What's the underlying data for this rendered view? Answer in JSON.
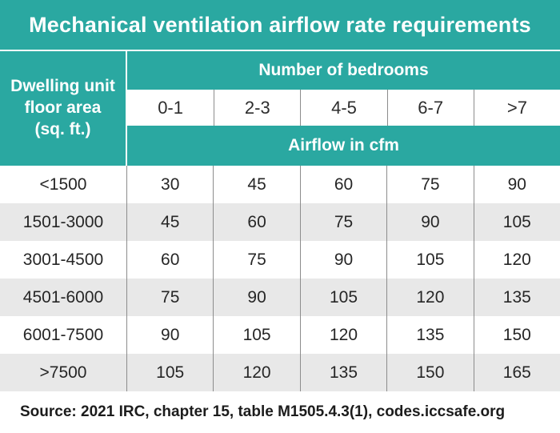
{
  "colors": {
    "accent_teal": "#2aa8a1",
    "alt_row_gray": "#e8e8e8",
    "separator_gray": "#8c8c8c",
    "text_dark": "#262626",
    "header_text": "#ffffff"
  },
  "chart_data": {
    "type": "table",
    "title": "Mechanical ventilation airflow rate requirements",
    "row_header_lines": [
      "Dwelling unit",
      "floor area",
      "(sq. ft.)"
    ],
    "column_group_label": "Number of bedrooms",
    "value_unit_label": "Airflow in cfm",
    "columns": [
      "0-1",
      "2-3",
      "4-5",
      "6-7",
      ">7"
    ],
    "rows": [
      {
        "area": "<1500",
        "values": [
          "30",
          "45",
          "60",
          "75",
          "90"
        ]
      },
      {
        "area": "1501-3000",
        "values": [
          "45",
          "60",
          "75",
          "90",
          "105"
        ]
      },
      {
        "area": "3001-4500",
        "values": [
          "60",
          "75",
          "90",
          "105",
          "120"
        ]
      },
      {
        "area": "4501-6000",
        "values": [
          "75",
          "90",
          "105",
          "120",
          "135"
        ]
      },
      {
        "area": "6001-7500",
        "values": [
          "90",
          "105",
          "120",
          "135",
          "150"
        ]
      },
      {
        "area": ">7500",
        "values": [
          "105",
          "120",
          "135",
          "150",
          "165"
        ]
      }
    ],
    "source": "Source: 2021 IRC, chapter 15, table M1505.4.3(1), codes.iccsafe.org"
  }
}
